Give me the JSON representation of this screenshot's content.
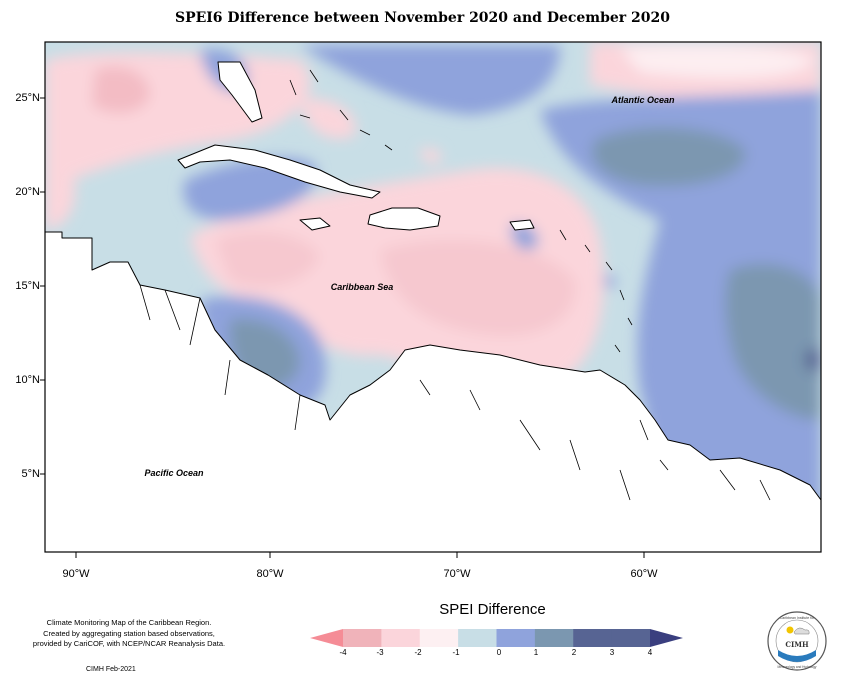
{
  "title": "SPEI6 Difference between November 2020 and December 2020",
  "map": {
    "latitude_labels": [
      "25°N",
      "20°N",
      "15°N",
      "10°N",
      "5°N"
    ],
    "longitude_labels": [
      "90°W",
      "80°W",
      "70°W",
      "60°W"
    ],
    "region_labels": {
      "atlantic": "Atlantic Ocean",
      "caribbean": "Caribbean Sea",
      "pacific": "Pacific Ocean"
    }
  },
  "footnote": [
    "Climate Monitoring Map of the Caribbean Region.",
    "Created by aggregating station based observations,",
    "provided by CariCOF, with NCEP/NCAR Reanalysis Data."
  ],
  "credit": "CIMH Feb-2021",
  "legend": {
    "title": "SPEI Difference",
    "ticks": [
      "-4",
      "-3",
      "-2",
      "-1",
      "0",
      "1",
      "2",
      "3",
      "4"
    ],
    "colors": [
      "#f58c96",
      "#f0b3ba",
      "#fbd5db",
      "#fdf0f2",
      "#c8dee6",
      "#8fa3dc",
      "#7b97b0",
      "#576493",
      "#3a3f7f"
    ]
  },
  "logo": {
    "top_text": "Caribbean Institute for",
    "center_text": "CIMH",
    "bottom_text": "Meteorology and Hydrology"
  }
}
